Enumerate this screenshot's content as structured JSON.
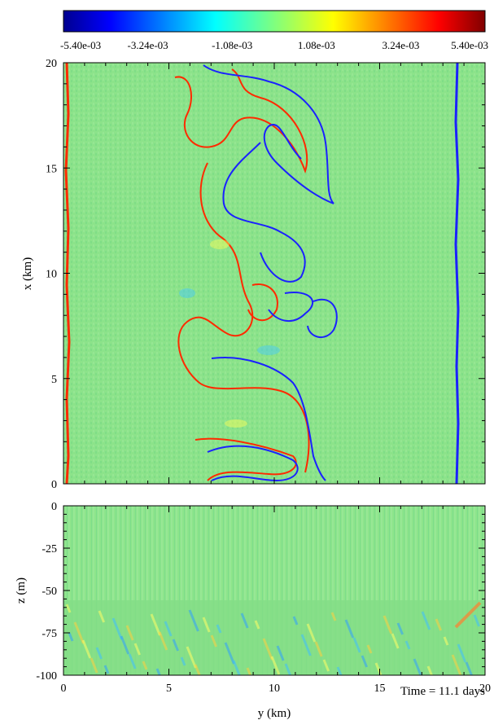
{
  "chart_data": [
    {
      "type": "heatmap",
      "panel": "top",
      "colorbar": {
        "ticks": [
          "-5.40e-03",
          "-3.24e-03",
          "-1.08e-03",
          "1.08e-03",
          "3.24e-03",
          "5.40e-03"
        ],
        "range": [
          -0.0054,
          0.0054
        ],
        "colormap": "jet",
        "colors": [
          "#00008f",
          "#0000ff",
          "#00ffff",
          "#ffff00",
          "#ff0000",
          "#800000"
        ]
      },
      "xlabel": "y (km)",
      "ylabel": "x (km)",
      "xlim": [
        0,
        20
      ],
      "ylim": [
        0,
        20
      ],
      "xticks": [
        0,
        5,
        10,
        15,
        20
      ],
      "yticks": [
        0,
        5,
        10,
        15,
        20
      ],
      "background_color": "#7fe07f",
      "contours": [
        {
          "level": "positive",
          "color": "#ff2a00"
        },
        {
          "level": "negative",
          "color": "#1a22ff"
        }
      ]
    },
    {
      "type": "heatmap",
      "panel": "bottom",
      "xlabel": "y (km)",
      "ylabel": "z (m)",
      "xlim": [
        0,
        20
      ],
      "ylim": [
        -100,
        0
      ],
      "xticks": [
        0,
        5,
        10,
        15,
        20
      ],
      "yticks": [
        0,
        -25,
        -50,
        -75,
        -100
      ],
      "background_color": "#7fe07f"
    }
  ],
  "time_annotation": "Time = 11.1 days"
}
